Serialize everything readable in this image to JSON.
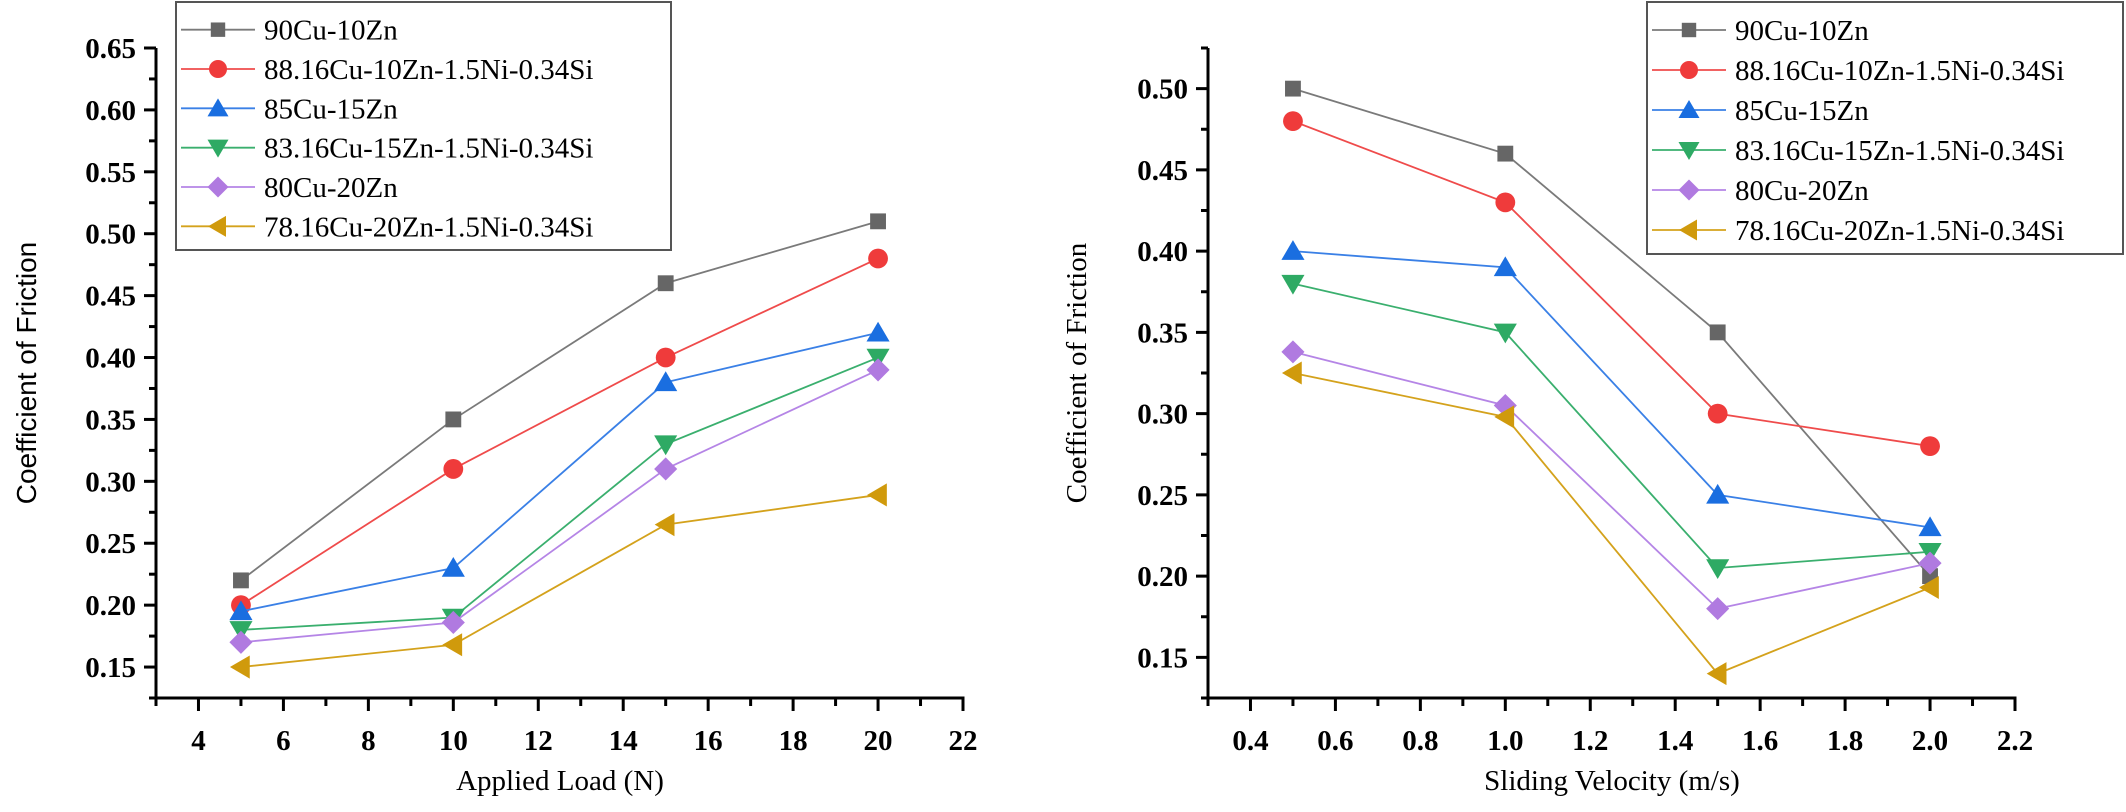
{
  "chart_data": [
    {
      "type": "line",
      "title": "",
      "xlabel": "Applied Load (N)",
      "ylabel": "Coefficient of Friction",
      "xlim": [
        3,
        22
      ],
      "ylim": [
        0.125,
        0.65
      ],
      "xticks": [
        4,
        6,
        8,
        10,
        12,
        14,
        16,
        18,
        20,
        22
      ],
      "xtick_labels": [
        "4",
        "6",
        "8",
        "10",
        "12",
        "14",
        "16",
        "18",
        "20",
        "22"
      ],
      "yticks": [
        0.15,
        0.2,
        0.25,
        0.3,
        0.35,
        0.4,
        0.45,
        0.5,
        0.55,
        0.6,
        0.65
      ],
      "ytick_labels": [
        "0.15",
        "0.20",
        "0.25",
        "0.30",
        "0.35",
        "0.40",
        "0.45",
        "0.50",
        "0.55",
        "0.60",
        "0.65"
      ],
      "grid": false,
      "legend_position": "top-left",
      "x": [
        5,
        10,
        15,
        20
      ],
      "series": [
        {
          "name": "90Cu-10Zn",
          "marker": "square",
          "color": "#666666",
          "line_color": "#7a7a7a",
          "values": [
            0.22,
            0.35,
            0.46,
            0.51
          ]
        },
        {
          "name": "88.16Cu-10Zn-1.5Ni-0.34Si",
          "marker": "circle",
          "color": "#ef3b3b",
          "line_color": "#ef4b4b",
          "values": [
            0.2,
            0.31,
            0.4,
            0.48
          ]
        },
        {
          "name": "85Cu-15Zn",
          "marker": "triangle-up",
          "color": "#1a6ee0",
          "line_color": "#3a80e6",
          "values": [
            0.195,
            0.23,
            0.38,
            0.42
          ]
        },
        {
          "name": "83.16Cu-15Zn-1.5Ni-0.34Si",
          "marker": "triangle-down",
          "color": "#2eaa64",
          "line_color": "#3aaf6e",
          "values": [
            0.18,
            0.19,
            0.33,
            0.4
          ]
        },
        {
          "name": "80Cu-20Zn",
          "marker": "diamond",
          "color": "#b07ae0",
          "line_color": "#b585e6",
          "values": [
            0.17,
            0.186,
            0.31,
            0.39
          ]
        },
        {
          "name": "78.16Cu-20Zn-1.5Ni-0.34Si",
          "marker": "triangle-left",
          "color": "#d09a0c",
          "line_color": "#d4a21c",
          "values": [
            0.15,
            0.168,
            0.265,
            0.289
          ]
        }
      ]
    },
    {
      "type": "line",
      "title": "",
      "xlabel": "Sliding Velocity (m/s)",
      "ylabel": "Coefficient of Friction",
      "xlim": [
        0.3,
        2.2
      ],
      "ylim": [
        0.125,
        0.525
      ],
      "xticks": [
        0.4,
        0.6,
        0.8,
        1.0,
        1.2,
        1.4,
        1.6,
        1.8,
        2.0,
        2.2
      ],
      "xtick_labels": [
        "0.4",
        "0.6",
        "0.8",
        "1.0",
        "1.2",
        "1.4",
        "1.6",
        "1.8",
        "2.0",
        "2.2"
      ],
      "yticks": [
        0.15,
        0.2,
        0.25,
        0.3,
        0.35,
        0.4,
        0.45,
        0.5
      ],
      "ytick_labels": [
        "0.15",
        "0.20",
        "0.25",
        "0.30",
        "0.35",
        "0.40",
        "0.45",
        "0.50"
      ],
      "grid": false,
      "legend_position": "top-right",
      "x": [
        0.5,
        1.0,
        1.5,
        2.0
      ],
      "series": [
        {
          "name": "90Cu-10Zn",
          "marker": "square",
          "color": "#666666",
          "line_color": "#7a7a7a",
          "values": [
            0.5,
            0.46,
            0.35,
            0.2
          ]
        },
        {
          "name": "88.16Cu-10Zn-1.5Ni-0.34Si",
          "marker": "circle",
          "color": "#ef3b3b",
          "line_color": "#ef4b4b",
          "values": [
            0.48,
            0.43,
            0.3,
            0.28
          ]
        },
        {
          "name": "85Cu-15Zn",
          "marker": "triangle-up",
          "color": "#1a6ee0",
          "line_color": "#3a80e6",
          "values": [
            0.4,
            0.39,
            0.25,
            0.23
          ]
        },
        {
          "name": "83.16Cu-15Zn-1.5Ni-0.34Si",
          "marker": "triangle-down",
          "color": "#2eaa64",
          "line_color": "#3aaf6e",
          "values": [
            0.38,
            0.35,
            0.205,
            0.215
          ]
        },
        {
          "name": "80Cu-20Zn",
          "marker": "diamond",
          "color": "#b07ae0",
          "line_color": "#b585e6",
          "values": [
            0.338,
            0.305,
            0.18,
            0.208
          ]
        },
        {
          "name": "78.16Cu-20Zn-1.5Ni-0.34Si",
          "marker": "triangle-left",
          "color": "#d09a0c",
          "line_color": "#d4a21c",
          "values": [
            0.325,
            0.298,
            0.14,
            0.193
          ]
        }
      ]
    }
  ]
}
